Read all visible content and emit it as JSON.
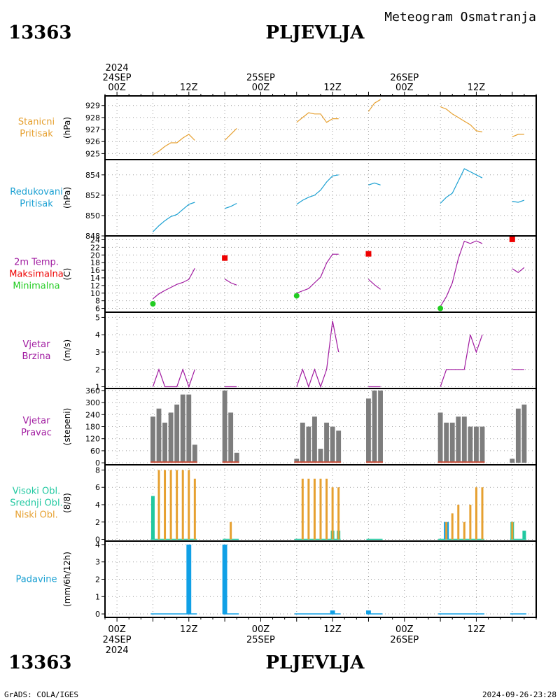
{
  "header": {
    "station_id": "13363",
    "station_name": "PLJEVLJA",
    "subtitle": "Meteogram Osmatranja"
  },
  "footer": {
    "left": "GrADS: COLA/IGES",
    "right": "2024-09-26-23:28"
  },
  "time_axis": {
    "top_labels": [
      {
        "t": 0,
        "lines": [
          "2024",
          "24SEP",
          "00Z"
        ]
      },
      {
        "t": 12,
        "lines": [
          "12Z"
        ]
      },
      {
        "t": 24,
        "lines": [
          "25SEP",
          "00Z"
        ]
      },
      {
        "t": 36,
        "lines": [
          "12Z"
        ]
      },
      {
        "t": 48,
        "lines": [
          "26SEP",
          "00Z"
        ]
      },
      {
        "t": 60,
        "lines": [
          "12Z"
        ]
      }
    ],
    "bottom_labels": [
      {
        "t": 0,
        "lines": [
          "00Z",
          "24SEP",
          "2024"
        ]
      },
      {
        "t": 12,
        "lines": [
          "12Z"
        ]
      },
      {
        "t": 24,
        "lines": [
          "00Z",
          "25SEP"
        ]
      },
      {
        "t": 36,
        "lines": [
          "12Z"
        ]
      },
      {
        "t": 48,
        "lines": [
          "00Z",
          "26SEP"
        ]
      },
      {
        "t": 60,
        "lines": [
          "12Z"
        ]
      }
    ]
  },
  "colors": {
    "orange": "#e6a030",
    "cyan": "#1aa0d2",
    "magenta": "#a01aa0",
    "red": "#ee0000",
    "green": "#22cc22",
    "gray": "#7d7d7d",
    "teal": "#20c8a0",
    "blue": "#10a0e6",
    "darkred": "#c8503c"
  },
  "chart_data": [
    {
      "type": "line",
      "title_lines": [
        "Stanicni",
        "Pritisak"
      ],
      "title_color": "#e6a030",
      "unit": "(hPa)",
      "ylim": [
        924.5,
        929.8
      ],
      "yticks": [
        925,
        926,
        927,
        928,
        929
      ],
      "series": [
        {
          "color": "#e6a030",
          "segments": [
            [
              [
                6,
                924.9
              ],
              [
                7,
                925.2
              ],
              [
                8,
                925.6
              ],
              [
                9,
                925.9
              ],
              [
                10,
                925.9
              ],
              [
                11,
                926.3
              ],
              [
                12,
                926.6
              ],
              [
                13,
                926.1
              ]
            ],
            [
              [
                18,
                926.1
              ],
              [
                19,
                926.6
              ],
              [
                20,
                927.1
              ]
            ],
            [
              [
                30,
                927.6
              ],
              [
                31,
                928.0
              ],
              [
                32,
                928.4
              ],
              [
                33,
                928.3
              ],
              [
                34,
                928.3
              ],
              [
                35,
                927.6
              ],
              [
                36,
                927.9
              ],
              [
                37,
                927.9
              ]
            ],
            [
              [
                42,
                928.5
              ],
              [
                43,
                929.2
              ],
              [
                44,
                929.5
              ]
            ],
            [
              [
                54,
                928.9
              ],
              [
                55,
                928.7
              ],
              [
                56,
                928.3
              ],
              [
                57,
                928.0
              ],
              [
                58,
                927.7
              ],
              [
                59,
                927.4
              ],
              [
                60,
                926.9
              ],
              [
                61,
                926.8
              ]
            ],
            [
              [
                66,
                926.4
              ],
              [
                67,
                926.6
              ],
              [
                68,
                926.6
              ]
            ]
          ]
        }
      ]
    },
    {
      "type": "line",
      "title_lines": [
        "Redukovani",
        "Pritisak"
      ],
      "title_color": "#1aa0d2",
      "unit": "(hPa)",
      "ylim": [
        848.0,
        855.5
      ],
      "yticks": [
        848,
        850,
        852,
        854
      ],
      "series": [
        {
          "color": "#1aa0d2",
          "segments": [
            [
              [
                6,
                848.4
              ],
              [
                7,
                849.0
              ],
              [
                8,
                849.5
              ],
              [
                9,
                849.9
              ],
              [
                10,
                850.1
              ],
              [
                11,
                850.6
              ],
              [
                12,
                851.1
              ],
              [
                13,
                851.3
              ]
            ],
            [
              [
                18,
                850.7
              ],
              [
                19,
                850.9
              ],
              [
                20,
                851.2
              ]
            ],
            [
              [
                30,
                851.1
              ],
              [
                31,
                851.5
              ],
              [
                32,
                851.8
              ],
              [
                33,
                852.0
              ],
              [
                34,
                852.5
              ],
              [
                35,
                853.3
              ],
              [
                36,
                853.9
              ],
              [
                37,
                854.0
              ]
            ],
            [
              [
                42,
                853.0
              ],
              [
                43,
                853.2
              ],
              [
                44,
                853.0
              ]
            ],
            [
              [
                54,
                851.2
              ],
              [
                55,
                851.8
              ],
              [
                56,
                852.2
              ],
              [
                57,
                853.4
              ],
              [
                58,
                854.6
              ],
              [
                59,
                854.3
              ],
              [
                60,
                854.0
              ],
              [
                61,
                853.7
              ]
            ],
            [
              [
                66,
                851.4
              ],
              [
                67,
                851.3
              ],
              [
                68,
                851.5
              ]
            ]
          ]
        }
      ]
    },
    {
      "type": "line",
      "title_lines": [
        "2m Temp.",
        "Maksimalna",
        "Minimalna"
      ],
      "title_line_colors": [
        "#a01aa0",
        "#ee0000",
        "#22cc22"
      ],
      "unit": "(C)",
      "ylim": [
        5,
        25
      ],
      "yticks": [
        6,
        8,
        10,
        12,
        14,
        16,
        18,
        20,
        22,
        24
      ],
      "series": [
        {
          "color": "#a01aa0",
          "segments": [
            [
              [
                6,
                8.5
              ],
              [
                7,
                9.8
              ],
              [
                8,
                10.7
              ],
              [
                9,
                11.5
              ],
              [
                10,
                12.3
              ],
              [
                11,
                12.8
              ],
              [
                12,
                13.6
              ],
              [
                13,
                16.5
              ]
            ],
            [
              [
                18,
                13.7
              ],
              [
                19,
                12.7
              ],
              [
                20,
                12.1
              ]
            ],
            [
              [
                30,
                10.0
              ],
              [
                31,
                10.6
              ],
              [
                32,
                11.2
              ],
              [
                33,
                12.7
              ],
              [
                34,
                14.2
              ],
              [
                35,
                17.9
              ],
              [
                36,
                20.2
              ],
              [
                37,
                20.2
              ]
            ],
            [
              [
                42,
                13.6
              ],
              [
                43,
                12.2
              ],
              [
                44,
                11.0
              ]
            ],
            [
              [
                54,
                6.5
              ],
              [
                55,
                9.1
              ],
              [
                56,
                12.7
              ],
              [
                57,
                19.1
              ],
              [
                58,
                23.6
              ],
              [
                59,
                23.0
              ],
              [
                60,
                23.7
              ],
              [
                61,
                23.0
              ]
            ],
            [
              [
                66,
                16.4
              ],
              [
                67,
                15.4
              ],
              [
                68,
                16.7
              ]
            ]
          ]
        }
      ],
      "max_points": [
        [
          18,
          19.2
        ],
        [
          42,
          20.3
        ],
        [
          66,
          24.1
        ]
      ],
      "min_points": [
        [
          6,
          7.2
        ],
        [
          30,
          9.3
        ],
        [
          54,
          6.0
        ]
      ]
    },
    {
      "type": "line",
      "title_lines": [
        "Vjetar",
        "Brzina"
      ],
      "title_color": "#a01aa0",
      "unit": "(m/s)",
      "ylim": [
        0.9,
        5.3
      ],
      "yticks": [
        1,
        2,
        3,
        4,
        5
      ],
      "series": [
        {
          "color": "#a01aa0",
          "segments": [
            [
              [
                6,
                1
              ],
              [
                7,
                2
              ],
              [
                8,
                1
              ],
              [
                9,
                1
              ],
              [
                10,
                1
              ],
              [
                11,
                2
              ],
              [
                12,
                1
              ],
              [
                13,
                2
              ]
            ],
            [
              [
                18,
                1
              ],
              [
                19,
                1
              ],
              [
                20,
                1
              ]
            ],
            [
              [
                30,
                1
              ],
              [
                31,
                2
              ],
              [
                32,
                1
              ],
              [
                33,
                2
              ],
              [
                34,
                1
              ],
              [
                35,
                2
              ],
              [
                36,
                4.8
              ],
              [
                37,
                3
              ]
            ],
            [
              [
                42,
                1
              ],
              [
                43,
                1
              ],
              [
                44,
                1
              ]
            ],
            [
              [
                54,
                1
              ],
              [
                55,
                2
              ],
              [
                56,
                2
              ],
              [
                57,
                2
              ],
              [
                58,
                2
              ],
              [
                59,
                4
              ],
              [
                60,
                3
              ],
              [
                61,
                4
              ]
            ],
            [
              [
                66,
                2
              ],
              [
                67,
                2
              ],
              [
                68,
                2
              ]
            ]
          ]
        }
      ]
    },
    {
      "type": "bar",
      "title_lines": [
        "Vjetar",
        "Pravac"
      ],
      "title_color": "#a01aa0",
      "unit": "(stepeni)",
      "ylim": [
        -10,
        370
      ],
      "yticks": [
        0,
        60,
        120,
        180,
        240,
        300,
        360
      ],
      "x": [
        6,
        7,
        8,
        9,
        10,
        11,
        12,
        13,
        18,
        19,
        20,
        30,
        31,
        32,
        33,
        34,
        35,
        36,
        37,
        42,
        43,
        44,
        54,
        55,
        56,
        57,
        58,
        59,
        60,
        61,
        66,
        67,
        68
      ],
      "values": [
        230,
        270,
        200,
        250,
        290,
        340,
        340,
        90,
        360,
        250,
        50,
        20,
        200,
        180,
        230,
        70,
        200,
        180,
        160,
        320,
        360,
        360,
        250,
        200,
        200,
        230,
        230,
        180,
        180,
        180,
        20,
        270,
        290
      ],
      "bar_color": "#7d7d7d",
      "base_segments": [
        [
          6,
          13
        ],
        [
          18,
          20
        ],
        [
          30,
          37
        ],
        [
          42,
          44
        ],
        [
          54,
          61
        ]
      ],
      "base_color": "#c8503c"
    },
    {
      "type": "bar",
      "title_lines": [
        "Visoki Obl.",
        "Srednji Obl.",
        "Niski Obl."
      ],
      "title_line_colors": [
        "#20c8a0",
        "#20c8a0",
        "#e6a030"
      ],
      "unit": "(8/8)",
      "ylim": [
        -0.2,
        8.6
      ],
      "yticks": [
        0,
        2,
        4,
        6,
        8
      ],
      "high": [
        [
          6,
          1
        ]
      ],
      "mid": [
        [
          6,
          5
        ],
        [
          36,
          1
        ],
        [
          37,
          1
        ],
        [
          66,
          2
        ],
        [
          68,
          1
        ]
      ],
      "low": [
        [
          7,
          8
        ],
        [
          8,
          8
        ],
        [
          9,
          8
        ],
        [
          10,
          8
        ],
        [
          11,
          8
        ],
        [
          12,
          8
        ],
        [
          13,
          7
        ],
        [
          19,
          2
        ],
        [
          31,
          7
        ],
        [
          32,
          7
        ],
        [
          33,
          7
        ],
        [
          34,
          7
        ],
        [
          35,
          7
        ],
        [
          36,
          6
        ],
        [
          37,
          6
        ],
        [
          55,
          2
        ],
        [
          56,
          3
        ],
        [
          57,
          4
        ],
        [
          58,
          2
        ],
        [
          59,
          4
        ],
        [
          60,
          6
        ],
        [
          61,
          6
        ],
        [
          66,
          2
        ]
      ],
      "blue": [
        [
          55,
          2
        ]
      ],
      "baseline_segments": [
        [
          6,
          13
        ],
        [
          18,
          20
        ],
        [
          30,
          37
        ],
        [
          42,
          44
        ],
        [
          54,
          61
        ],
        [
          66,
          68
        ]
      ]
    },
    {
      "type": "bar",
      "title_lines": [
        "Padavine"
      ],
      "title_color": "#1aa0d2",
      "unit": "(mm/6h/12h)",
      "ylim": [
        -0.2,
        4.2
      ],
      "yticks": [
        0,
        1,
        2,
        3,
        4
      ],
      "bars": [
        [
          12,
          4.0
        ],
        [
          18,
          4.0
        ],
        [
          36,
          0.2
        ],
        [
          42,
          0.2
        ]
      ],
      "baseline_segments": [
        [
          6,
          13
        ],
        [
          18,
          20
        ],
        [
          30,
          37
        ],
        [
          42,
          44
        ],
        [
          54,
          61
        ],
        [
          66,
          68
        ]
      ],
      "bar_color": "#10a0e6"
    }
  ]
}
